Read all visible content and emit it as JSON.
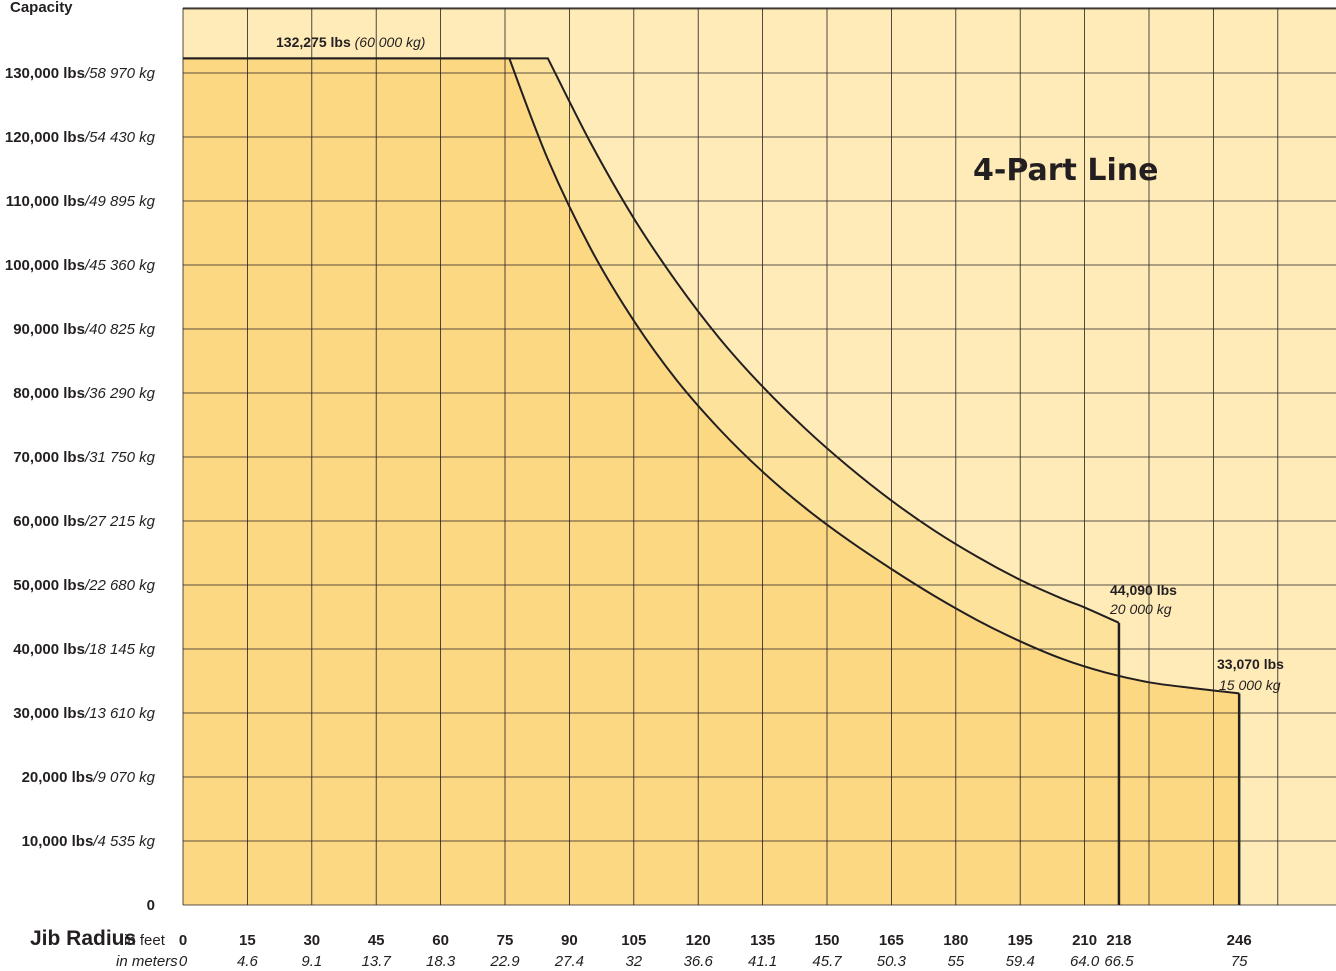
{
  "chart_data": {
    "type": "area",
    "ylabel": "Capacity",
    "annotation_title": "4-Part Line",
    "xlabel": "Jib Radius",
    "x_unit_feet": "in feet",
    "x_unit_meters": "in meters",
    "ylim": [
      0,
      140000
    ],
    "xlim": [
      0,
      261
    ],
    "x_ticks": [
      {
        "ft": "0",
        "m": "0",
        "bold": false
      },
      {
        "ft": "15",
        "m": "4.6",
        "bold": false
      },
      {
        "ft": "30",
        "m": "9.1",
        "bold": false
      },
      {
        "ft": "45",
        "m": "13.7",
        "bold": false
      },
      {
        "ft": "60",
        "m": "18.3",
        "bold": false
      },
      {
        "ft": "75",
        "m": "22.9",
        "bold": false
      },
      {
        "ft": "90",
        "m": "27.4",
        "bold": false
      },
      {
        "ft": "105",
        "m": "32",
        "bold": false
      },
      {
        "ft": "120",
        "m": "36.6",
        "bold": false
      },
      {
        "ft": "135",
        "m": "41.1",
        "bold": false
      },
      {
        "ft": "150",
        "m": "45.7",
        "bold": false
      },
      {
        "ft": "165",
        "m": "50.3",
        "bold": false
      },
      {
        "ft": "180",
        "m": "55",
        "bold": false
      },
      {
        "ft": "195",
        "m": "59.4",
        "bold": false
      },
      {
        "ft": "210",
        "m": "64.0",
        "bold": false
      },
      {
        "ft": "218",
        "m": "66.5",
        "bold": true
      },
      {
        "ft": "246",
        "m": "75",
        "bold": true
      }
    ],
    "y_ticks": [
      {
        "value": 0,
        "lbs": "0",
        "kg": ""
      },
      {
        "value": 10000,
        "lbs": "10,000 lbs",
        "kg": "/4 535 kg"
      },
      {
        "value": 20000,
        "lbs": "20,000 lbs",
        "kg": "/9 070 kg"
      },
      {
        "value": 30000,
        "lbs": "30,000 lbs",
        "kg": "/13 610 kg"
      },
      {
        "value": 40000,
        "lbs": "40,000 lbs",
        "kg": "/18 145 kg"
      },
      {
        "value": 50000,
        "lbs": "50,000 lbs",
        "kg": "/22 680 kg"
      },
      {
        "value": 60000,
        "lbs": "60,000 lbs",
        "kg": "/27 215 kg"
      },
      {
        "value": 70000,
        "lbs": "70,000 lbs",
        "kg": "/31 750 kg"
      },
      {
        "value": 80000,
        "lbs": "80,000 lbs",
        "kg": "/36 290 kg"
      },
      {
        "value": 90000,
        "lbs": "90,000 lbs",
        "kg": "/40 825 kg"
      },
      {
        "value": 100000,
        "lbs": "100,000 lbs",
        "kg": "/45 360 kg"
      },
      {
        "value": 110000,
        "lbs": "110,000 lbs",
        "kg": "/49 895 kg"
      },
      {
        "value": 120000,
        "lbs": "120,000 lbs",
        "kg": "/54 430 kg"
      },
      {
        "value": 130000,
        "lbs": "130,000 lbs",
        "kg": "/58 970 kg"
      }
    ],
    "series": [
      {
        "max_radius_ft": 218,
        "x": [
          0,
          85,
          95,
          105,
          115,
          125,
          135,
          145,
          155,
          165,
          175,
          185,
          195,
          205,
          210,
          218
        ],
        "y": [
          132275,
          132275,
          119000,
          107300,
          97300,
          88500,
          81000,
          74400,
          68500,
          63200,
          58500,
          54400,
          50800,
          47800,
          46500,
          44090
        ]
      },
      {
        "max_radius_ft": 246,
        "x": [
          0,
          76,
          85,
          95,
          105,
          115,
          125,
          135,
          145,
          155,
          165,
          175,
          185,
          195,
          205,
          215,
          225,
          235,
          246
        ],
        "y": [
          132275,
          132275,
          116500,
          102500,
          91300,
          82000,
          74300,
          67700,
          62000,
          57000,
          52500,
          48300,
          44500,
          41200,
          38400,
          36300,
          34800,
          33900,
          33070
        ]
      }
    ],
    "annotations": [
      {
        "lbs": "132,275 lbs",
        "kg": "(60 000 kg)"
      },
      {
        "lbs": "44,090 lbs",
        "kg": "20 000 kg"
      },
      {
        "lbs": "33,070 lbs",
        "kg": "15 000 kg"
      }
    ],
    "colors": {
      "background": "#feebb8",
      "fill_inner": "#fdd883",
      "fill_outer": "#fde29c",
      "lines": "#231f20"
    },
    "grid": true
  }
}
